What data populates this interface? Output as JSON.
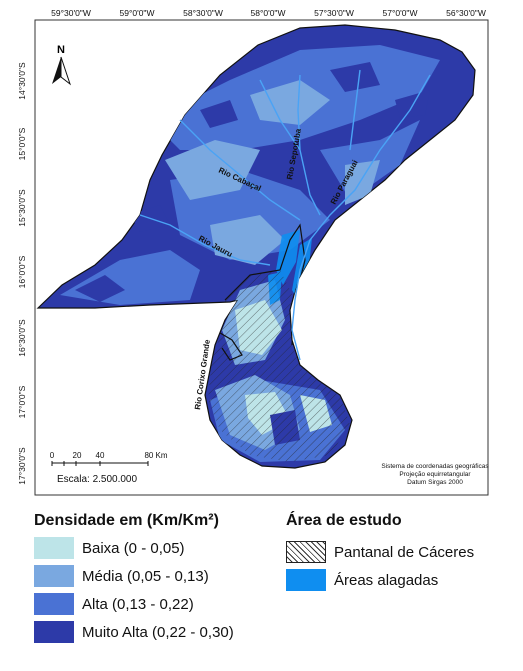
{
  "map": {
    "top_coords": [
      "59°30'0\"W",
      "59°0'0\"W",
      "58°30'0\"W",
      "58°0'0\"W",
      "57°30'0\"W",
      "57°0'0\"W",
      "56°30'0\"W"
    ],
    "left_coords": [
      "14°30'0\"S",
      "15°0'0\"S",
      "15°30'0\"S",
      "16°0'0\"S",
      "16°30'0\"S",
      "17°0'0\"S",
      "17°30'0\"S"
    ],
    "north_label": "N",
    "scale_ticks": [
      "0",
      "20",
      "40",
      "80 Km"
    ],
    "scale_text": "Escala: 2.500.000",
    "projection_lines": [
      "Sistema de coordenadas geográficas",
      "Projeção equirretangular",
      "Datum Sirgas 2000"
    ],
    "rivers": [
      "Rio Cabaçal",
      "Rio Sepotuba",
      "Rio Paraguai",
      "Rio Jauru",
      "Rio Corixo Grande"
    ],
    "colors": {
      "baixa": "#bde4e8",
      "media": "#7aa8e0",
      "alta": "#4a72d4",
      "muito_alta": "#2d3aa8",
      "alagadas": "#0f8ef0",
      "background": "#ffffff"
    }
  },
  "legend": {
    "density_title": "Densidade em (Km/Km²)",
    "density_items": [
      "Baixa (0 - 0,05)",
      "Média (0,05 - 0,13)",
      "Alta (0,13 - 0,22)",
      "Muito Alta (0,22 - 0,30)"
    ],
    "study_title": "Área de estudo",
    "study_items": [
      "Pantanal de Cáceres",
      "Áreas alagadas"
    ]
  }
}
